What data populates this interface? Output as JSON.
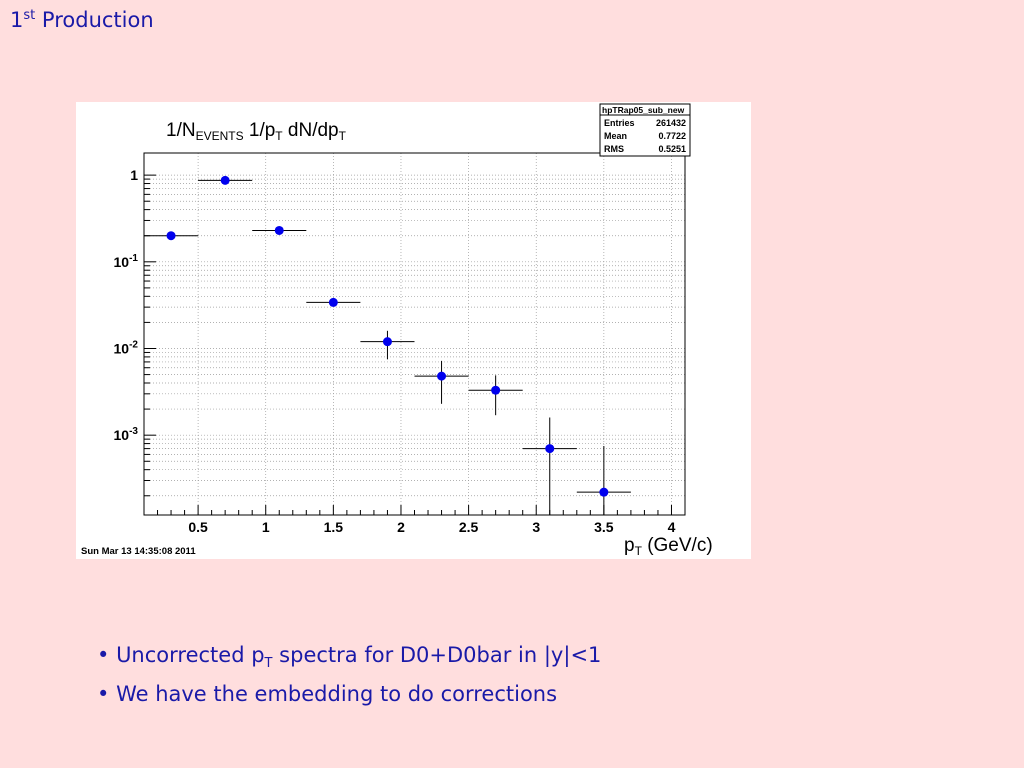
{
  "slide": {
    "title_main": "1",
    "title_sup": "st",
    "title_rest": " Production"
  },
  "stats_box": {
    "name": "hpTRap05_sub_new",
    "rows": [
      {
        "label": "Entries",
        "value": "261432"
      },
      {
        "label": "Mean",
        "value": "0.7722"
      },
      {
        "label": "RMS",
        "value": "0.5251"
      }
    ]
  },
  "timestamp": "Sun Mar 13 14:35:08 2011",
  "chart_data": {
    "type": "scatter",
    "title_parts": {
      "p1": "1/N",
      "s1": "EVENTS",
      "p2": " 1/p",
      "s2": "T",
      "p3": " dN/dp",
      "s3": "T"
    },
    "xlabel_parts": {
      "p1": "p",
      "s1": "T",
      "p2": " (GeV/c)"
    },
    "xlim": [
      0.1,
      4.1
    ],
    "ylim": [
      0.00012,
      1.8
    ],
    "log_y": true,
    "grid": true,
    "x_ticks": [
      {
        "v": 0.5,
        "label": "0.5"
      },
      {
        "v": 1,
        "label": "1"
      },
      {
        "v": 1.5,
        "label": "1.5"
      },
      {
        "v": 2,
        "label": "2"
      },
      {
        "v": 2.5,
        "label": "2.5"
      },
      {
        "v": 3,
        "label": "3"
      },
      {
        "v": 3.5,
        "label": "3.5"
      },
      {
        "v": 4,
        "label": "4"
      }
    ],
    "y_ticks": [
      {
        "v": 1,
        "base": "1",
        "exp": ""
      },
      {
        "v": 0.1,
        "base": "10",
        "exp": "-1"
      },
      {
        "v": 0.01,
        "base": "10",
        "exp": "-2"
      },
      {
        "v": 0.001,
        "base": "10",
        "exp": "-3"
      }
    ],
    "points": [
      {
        "x": 0.3,
        "xerr": 0.2,
        "y": 0.2,
        "ylo": 0.19,
        "yhi": 0.21
      },
      {
        "x": 0.7,
        "xerr": 0.2,
        "y": 0.87,
        "ylo": 0.84,
        "yhi": 0.9
      },
      {
        "x": 1.1,
        "xerr": 0.2,
        "y": 0.23,
        "ylo": 0.22,
        "yhi": 0.24
      },
      {
        "x": 1.5,
        "xerr": 0.2,
        "y": 0.034,
        "ylo": 0.031,
        "yhi": 0.037
      },
      {
        "x": 1.9,
        "xerr": 0.2,
        "y": 0.012,
        "ylo": 0.0075,
        "yhi": 0.016
      },
      {
        "x": 2.3,
        "xerr": 0.2,
        "y": 0.0048,
        "ylo": 0.0023,
        "yhi": 0.0072
      },
      {
        "x": 2.7,
        "xerr": 0.2,
        "y": 0.0033,
        "ylo": 0.0017,
        "yhi": 0.0049
      },
      {
        "x": 3.1,
        "xerr": 0.2,
        "y": 0.0007,
        "ylo": 0.00012,
        "yhi": 0.0016
      },
      {
        "x": 3.5,
        "xerr": 0.2,
        "y": 0.00022,
        "ylo": 0.00012,
        "yhi": 0.00075
      }
    ]
  },
  "bullets": [
    {
      "bullet": "•",
      "p1": " Uncorrected p",
      "sub": "T",
      "p2": " spectra for D0+D0bar in |y|<1"
    },
    {
      "bullet": "•",
      "p1": " We have the embedding to do corrections",
      "sub": "",
      "p2": ""
    }
  ],
  "colors": {
    "marker": "#0000ee",
    "text": "#1a1aa8",
    "background": "#ffdede"
  }
}
